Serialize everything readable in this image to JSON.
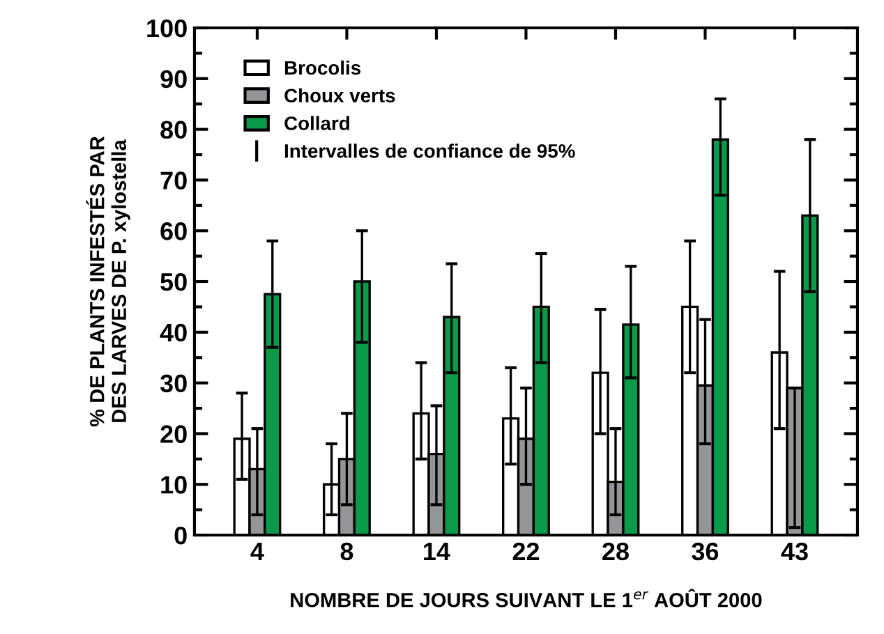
{
  "chart_data": {
    "type": "bar",
    "xlabel": "NOMBRE DE JOURS SUIVANT LE 1$^{er}$ AOÛT 2000",
    "ylabel": "% DE PLANTS INFESTÉS PAR\nDES LARVES DE P. xylostella",
    "categories": [
      "4",
      "8",
      "14",
      "22",
      "28",
      "36",
      "43"
    ],
    "series": [
      {
        "name": "Brocolis",
        "color": "#ffffff",
        "values": [
          19,
          10,
          24,
          23,
          32,
          45,
          36
        ],
        "errors": [
          [
            11,
            28
          ],
          [
            4,
            18
          ],
          [
            15,
            34
          ],
          [
            14,
            33
          ],
          [
            20,
            44.5
          ],
          [
            32,
            58
          ],
          [
            21,
            52
          ]
        ]
      },
      {
        "name": "Choux verts",
        "color": "#939598",
        "values": [
          13,
          15,
          16,
          19,
          10.5,
          29.5,
          29
        ],
        "errors": [
          [
            4,
            21
          ],
          [
            6,
            24
          ],
          [
            6,
            25.5
          ],
          [
            10,
            29
          ],
          [
            4,
            21
          ],
          [
            18,
            42.5
          ],
          [
            1.5,
            29
          ]
        ]
      },
      {
        "name": "Collard",
        "color": "#0a9a4a",
        "values": [
          47.5,
          50,
          43,
          45,
          41.5,
          78,
          63
        ],
        "errors": [
          [
            37,
            58
          ],
          [
            38,
            60
          ],
          [
            32,
            53.5
          ],
          [
            34,
            55.5
          ],
          [
            31,
            53
          ],
          [
            67,
            86
          ],
          [
            48,
            78
          ]
        ]
      }
    ],
    "annotations": [
      "Intervalles de confiance de 95%"
    ],
    "ylim": [
      0,
      100
    ],
    "yticks": [
      0,
      10,
      20,
      30,
      40,
      50,
      60,
      70,
      80,
      90,
      100
    ],
    "grid": false,
    "legend": "top left"
  }
}
